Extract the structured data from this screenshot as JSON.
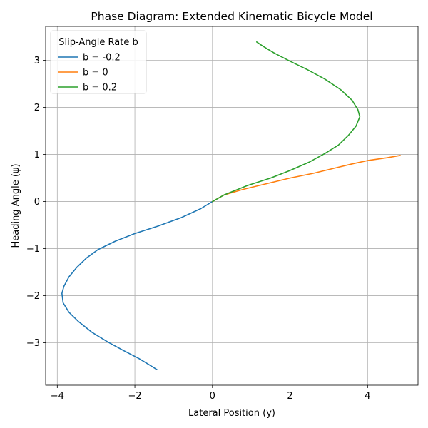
{
  "chart_data": {
    "type": "line",
    "title": "Phase Diagram: Extended Kinematic Bicycle Model",
    "xlabel": "Lateral Position (y)",
    "ylabel": "Heading Angle (ψ)",
    "xlim": [
      -4.3,
      5.3
    ],
    "ylim": [
      -3.9,
      3.72
    ],
    "xticks": [
      -4,
      -2,
      0,
      2,
      4
    ],
    "yticks": [
      -3,
      -2,
      -1,
      0,
      1,
      2,
      3
    ],
    "xtick_labels": [
      "−4",
      "−2",
      "0",
      "2",
      "4"
    ],
    "ytick_labels": [
      "−3",
      "−2",
      "−1",
      "0",
      "1",
      "2",
      "3"
    ],
    "grid": true,
    "legend": {
      "title": "Slip-Angle Rate b",
      "location": "top-left"
    },
    "series": [
      {
        "name": "b = -0.2",
        "color": "#1f77b4",
        "points": [
          [
            0,
            0
          ],
          [
            -0.3,
            -0.15
          ],
          [
            -0.8,
            -0.34
          ],
          [
            -1.4,
            -0.52
          ],
          [
            -2.0,
            -0.68
          ],
          [
            -2.5,
            -0.84
          ],
          [
            -2.95,
            -1.02
          ],
          [
            -3.25,
            -1.2
          ],
          [
            -3.5,
            -1.4
          ],
          [
            -3.7,
            -1.6
          ],
          [
            -3.83,
            -1.8
          ],
          [
            -3.88,
            -1.95
          ],
          [
            -3.85,
            -2.15
          ],
          [
            -3.7,
            -2.35
          ],
          [
            -3.45,
            -2.55
          ],
          [
            -3.1,
            -2.78
          ],
          [
            -2.7,
            -2.98
          ],
          [
            -2.3,
            -3.16
          ],
          [
            -1.9,
            -3.33
          ],
          [
            -1.6,
            -3.48
          ],
          [
            -1.43,
            -3.57
          ]
        ]
      },
      {
        "name": "b = 0",
        "color": "#ff7f0e",
        "points": [
          [
            0,
            0
          ],
          [
            0.3,
            0.14
          ],
          [
            0.8,
            0.26
          ],
          [
            1.4,
            0.38
          ],
          [
            2.0,
            0.5
          ],
          [
            2.6,
            0.6
          ],
          [
            3.1,
            0.7
          ],
          [
            3.6,
            0.8
          ],
          [
            4.0,
            0.87
          ],
          [
            4.5,
            0.93
          ],
          [
            4.84,
            0.98
          ]
        ]
      },
      {
        "name": "b = 0.2",
        "color": "#2ca02c",
        "points": [
          [
            0,
            0
          ],
          [
            0.3,
            0.14
          ],
          [
            0.9,
            0.34
          ],
          [
            1.5,
            0.5
          ],
          [
            2.0,
            0.66
          ],
          [
            2.5,
            0.84
          ],
          [
            2.9,
            1.02
          ],
          [
            3.25,
            1.2
          ],
          [
            3.5,
            1.4
          ],
          [
            3.7,
            1.6
          ],
          [
            3.8,
            1.8
          ],
          [
            3.75,
            1.95
          ],
          [
            3.6,
            2.15
          ],
          [
            3.3,
            2.38
          ],
          [
            2.9,
            2.6
          ],
          [
            2.45,
            2.8
          ],
          [
            2.0,
            2.98
          ],
          [
            1.6,
            3.15
          ],
          [
            1.3,
            3.3
          ],
          [
            1.14,
            3.39
          ]
        ]
      }
    ]
  }
}
